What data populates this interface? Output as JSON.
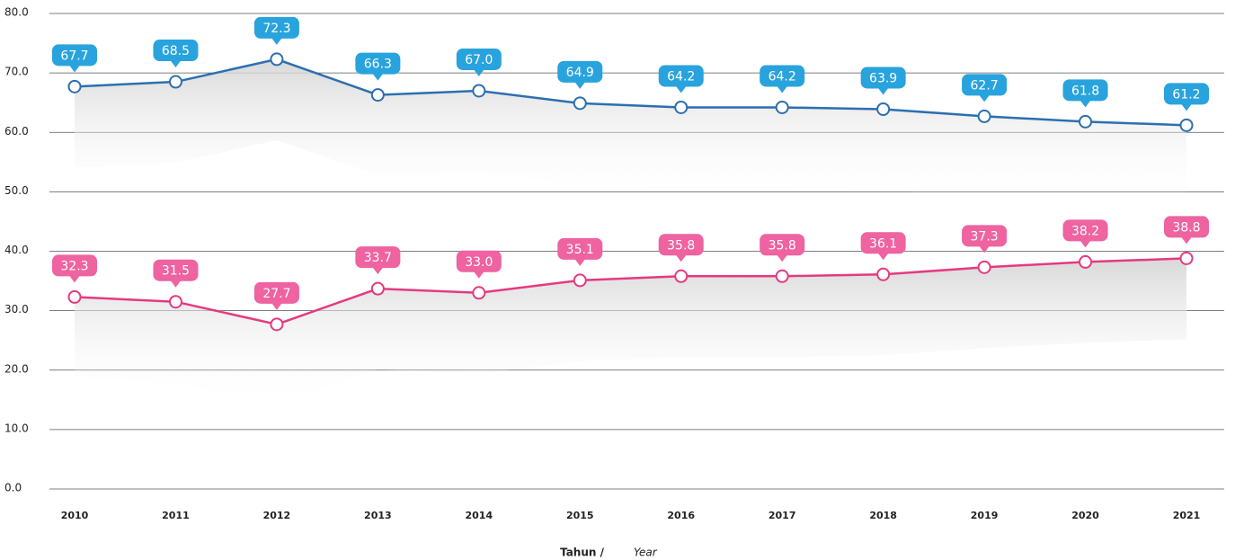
{
  "chart_data": {
    "type": "line",
    "x_label": {
      "main": "Tahun /",
      "translation": "Year"
    },
    "categories": [
      "2010",
      "2011",
      "2012",
      "2013",
      "2014",
      "2015",
      "2016",
      "2017",
      "2018",
      "2019",
      "2020",
      "2021"
    ],
    "series": [
      {
        "color": "#2c6fb0",
        "label_color": "#29a3dd",
        "values": [
          67.7,
          68.5,
          72.3,
          66.3,
          67.0,
          64.9,
          64.2,
          64.2,
          63.9,
          62.7,
          61.8,
          61.2
        ],
        "value_labels": [
          "67.7",
          "68.5",
          "72.3",
          "66.3",
          "67.0",
          "64.9",
          "64.2",
          "64.2",
          "63.9",
          "62.7",
          "61.8",
          "61.2"
        ]
      },
      {
        "color": "#e43a80",
        "label_color": "#ee63a0",
        "values": [
          32.3,
          31.5,
          27.7,
          33.7,
          33.0,
          35.1,
          35.8,
          35.8,
          36.1,
          37.3,
          38.2,
          38.8
        ],
        "value_labels": [
          "32.3",
          "31.5",
          "27.7",
          "33.7",
          "33.0",
          "35.1",
          "35.8",
          "35.8",
          "36.1",
          "37.3",
          "38.2",
          "38.8"
        ]
      }
    ],
    "ylim": [
      0,
      80
    ],
    "yticks": [
      {
        "value": 0,
        "label": "0.0"
      },
      {
        "value": 10,
        "label": "10.0"
      },
      {
        "value": 20,
        "label": "20.0"
      },
      {
        "value": 30,
        "label": "30.0"
      },
      {
        "value": 40,
        "label": "40.0"
      },
      {
        "value": 50,
        "label": "50.0"
      },
      {
        "value": 60,
        "label": "60.0"
      },
      {
        "value": 70,
        "label": "70.0"
      },
      {
        "value": 80,
        "label": "80.0"
      }
    ],
    "grid": true
  }
}
